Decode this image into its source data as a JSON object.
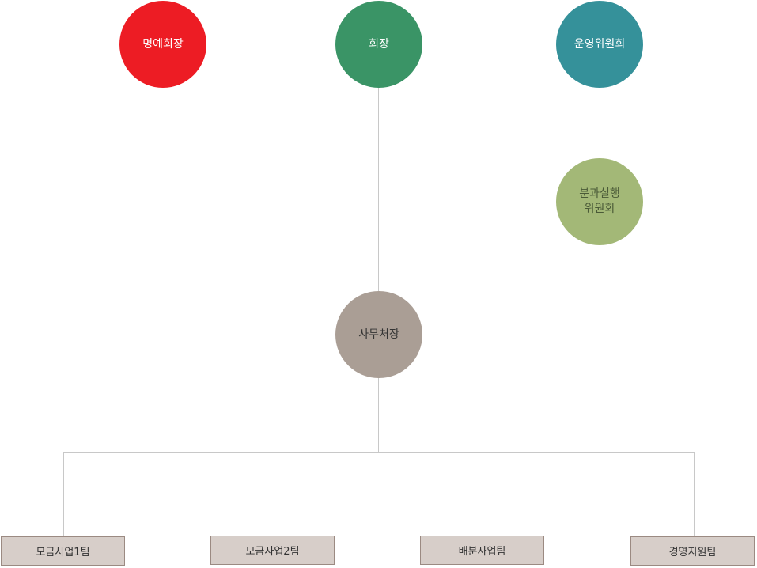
{
  "colors": {
    "honorary": "#ed1c24",
    "chairman": "#3a9466",
    "committee": "#35919a",
    "subcommittee": "#a3b877",
    "secretary": "#aa9e95",
    "team_box": "#d7cec9",
    "line": "#c8c8c8"
  },
  "nodes": {
    "honorary_chairman": "명예회장",
    "chairman": "회장",
    "operating_committee": "운영위원회",
    "subcommittee_line1": "분과실행",
    "subcommittee_line2": "위원회",
    "secretary_general": "사무처장"
  },
  "teams": [
    "모금사업1팀",
    "모금사업2팀",
    "배분사업팀",
    "경영지원팀"
  ]
}
